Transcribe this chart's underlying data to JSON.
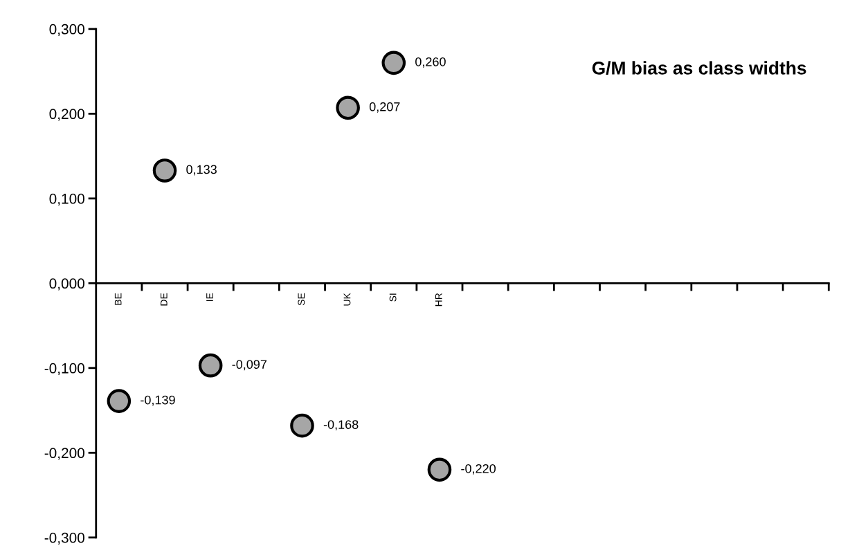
{
  "chart_data": {
    "type": "scatter",
    "title": "G/M bias as class widths",
    "categories": [
      "BE",
      "DE",
      "IE",
      null,
      "SE",
      "UK",
      "SI",
      "HR",
      null,
      null,
      null,
      null,
      null,
      null,
      null,
      null
    ],
    "series": [
      {
        "color": "#a6a6a6",
        "values": [
          -0.139,
          0.133,
          -0.097,
          null,
          -0.168,
          0.207,
          0.26,
          -0.22,
          null,
          null,
          null,
          null,
          null,
          null,
          null,
          null
        ],
        "value_labels": [
          "-0,139",
          "0,133",
          "-0,097",
          null,
          "-0,168",
          "0,207",
          "0,260",
          "-0,220",
          null,
          null,
          null,
          null,
          null,
          null,
          null,
          null
        ]
      }
    ],
    "ylim": [
      -0.3,
      0.3
    ],
    "yticks": [
      {
        "value": -0.3,
        "label": "-0,300"
      },
      {
        "value": -0.2,
        "label": "-0,200"
      },
      {
        "value": -0.1,
        "label": "-0,100"
      },
      {
        "value": 0,
        "label": "0,000"
      },
      {
        "value": 0.1,
        "label": "0,100"
      },
      {
        "value": 0.2,
        "label": "0,200"
      },
      {
        "value": 0.3,
        "label": "0,300"
      }
    ],
    "marker": "circle",
    "grid": false
  }
}
